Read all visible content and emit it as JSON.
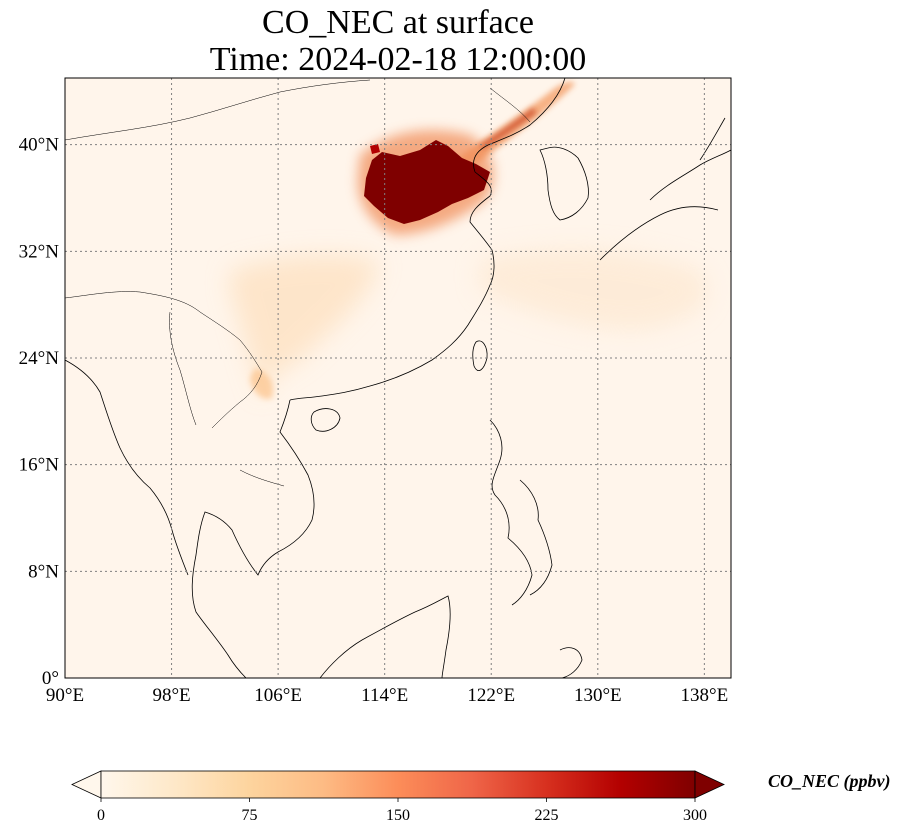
{
  "title": {
    "line1": "CO_NEC at surface",
    "line2": "Time: 2024-02-18 12:00:00"
  },
  "map": {
    "projection": "PlateCarree",
    "extent": {
      "lon": [
        90,
        140
      ],
      "lat": [
        0,
        45
      ]
    },
    "gridlines": "dotted gray",
    "lon_ticks": [
      {
        "value": 90,
        "label": "90°E"
      },
      {
        "value": 98,
        "label": "98°E"
      },
      {
        "value": 106,
        "label": "106°E"
      },
      {
        "value": 114,
        "label": "114°E"
      },
      {
        "value": 122,
        "label": "122°E"
      },
      {
        "value": 130,
        "label": "130°E"
      },
      {
        "value": 138,
        "label": "138°E"
      }
    ],
    "lat_ticks": [
      {
        "value": 0,
        "label": "0°"
      },
      {
        "value": 8,
        "label": "8°N"
      },
      {
        "value": 16,
        "label": "16°N"
      },
      {
        "value": 24,
        "label": "24°N"
      },
      {
        "value": 32,
        "label": "32°N"
      },
      {
        "value": 40,
        "label": "40°N"
      }
    ],
    "background_color": "#fff5eb",
    "coastline_color": "#000000"
  },
  "colorbar": {
    "label": "CO_NEC (ppbv)",
    "cmap": "OrRd",
    "range": [
      0,
      300
    ],
    "extend": "both",
    "ticks": [
      "0",
      "75",
      "150",
      "225",
      "300"
    ],
    "tick_values": [
      0,
      75,
      150,
      225,
      300
    ],
    "colors": [
      "#fff7ec",
      "#fee8c8",
      "#fdd49e",
      "#fdbb84",
      "#fc8d59",
      "#ef6548",
      "#d7301f",
      "#b30000",
      "#7f0000"
    ]
  }
}
